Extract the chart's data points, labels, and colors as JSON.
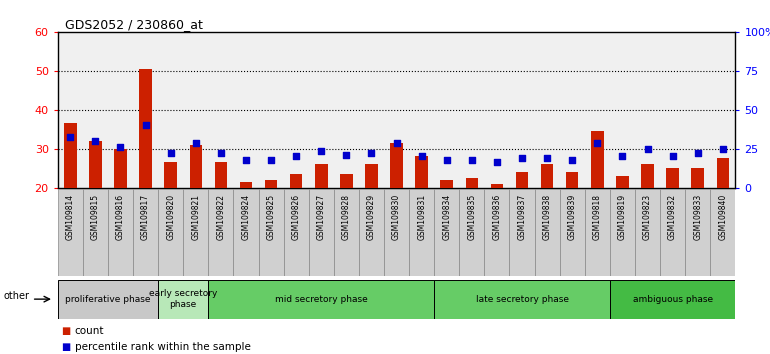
{
  "title": "GDS2052 / 230860_at",
  "samples": [
    "GSM109814",
    "GSM109815",
    "GSM109816",
    "GSM109817",
    "GSM109820",
    "GSM109821",
    "GSM109822",
    "GSM109824",
    "GSM109825",
    "GSM109826",
    "GSM109827",
    "GSM109828",
    "GSM109829",
    "GSM109830",
    "GSM109831",
    "GSM109834",
    "GSM109835",
    "GSM109836",
    "GSM109837",
    "GSM109838",
    "GSM109839",
    "GSM109818",
    "GSM109819",
    "GSM109823",
    "GSM109832",
    "GSM109833",
    "GSM109840"
  ],
  "count_values": [
    36.5,
    32,
    30,
    50.5,
    26.5,
    31,
    26.5,
    21.5,
    22,
    23.5,
    26,
    23.5,
    26,
    31.5,
    28,
    22,
    22.5,
    21,
    24,
    26,
    24,
    34.5,
    23,
    26,
    25,
    25,
    27.5
  ],
  "percentile_values": [
    33,
    32,
    30.5,
    36,
    29,
    31.5,
    29,
    27,
    27,
    28,
    29.5,
    28.5,
    29,
    31.5,
    28,
    27,
    27,
    26.5,
    27.5,
    27.5,
    27,
    31.5,
    28,
    30,
    28,
    29,
    30
  ],
  "ymin": 20,
  "ymax": 60,
  "yticks_left": [
    20,
    30,
    40,
    50,
    60
  ],
  "yticks_right_vals": [
    0,
    25,
    50,
    75,
    100
  ],
  "ytick_labels_right": [
    "0",
    "25",
    "50",
    "75",
    "100%"
  ],
  "phases": [
    {
      "label": "proliferative phase",
      "start": 0,
      "end": 3,
      "color": "#c8c8c8"
    },
    {
      "label": "early secretory\nphase",
      "start": 4,
      "end": 5,
      "color": "#b8e8b8"
    },
    {
      "label": "mid secretory phase",
      "start": 6,
      "end": 14,
      "color": "#66cc66"
    },
    {
      "label": "late secretory phase",
      "start": 15,
      "end": 21,
      "color": "#66cc66"
    },
    {
      "label": "ambiguous phase",
      "start": 22,
      "end": 26,
      "color": "#44bb44"
    }
  ],
  "bar_color": "#cc2000",
  "dot_color": "#0000cc",
  "background_color": "#ffffff",
  "plot_bg_color": "#f0f0f0",
  "tick_cell_color": "#d0d0d0"
}
